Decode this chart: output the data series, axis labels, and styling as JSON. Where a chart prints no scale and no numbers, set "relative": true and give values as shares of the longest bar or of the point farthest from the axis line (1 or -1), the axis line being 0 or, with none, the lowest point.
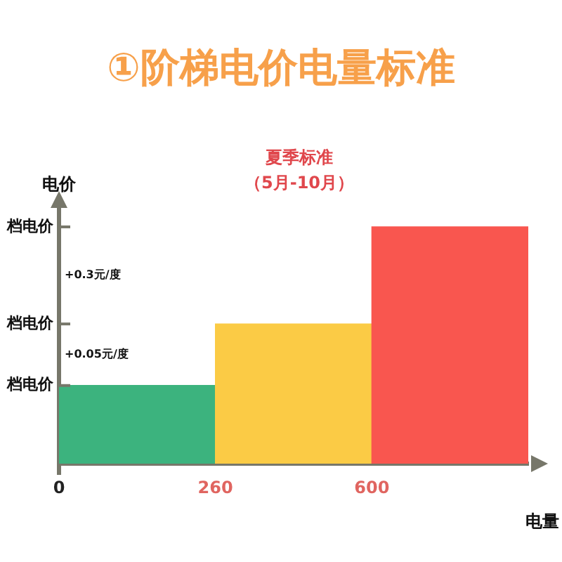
{
  "chart_data": {
    "type": "bar",
    "title": "①阶梯电价电量标准",
    "subtitle": "夏季标准（5月-10月）",
    "xlabel": "电量",
    "ylabel": "电价",
    "relative": true,
    "categories": [
      null,
      null,
      null
    ],
    "values": [
      0.33,
      0.59,
      1
    ],
    "colors": [
      "#3cb37e",
      "#fbcb45",
      "#f9564f"
    ],
    "grid": false,
    "annotations": [
      "档电价",
      "档电价",
      "档电价",
      "+0.05元/度",
      "+0.3元/度",
      "0",
      "260",
      "600"
    ]
  }
}
